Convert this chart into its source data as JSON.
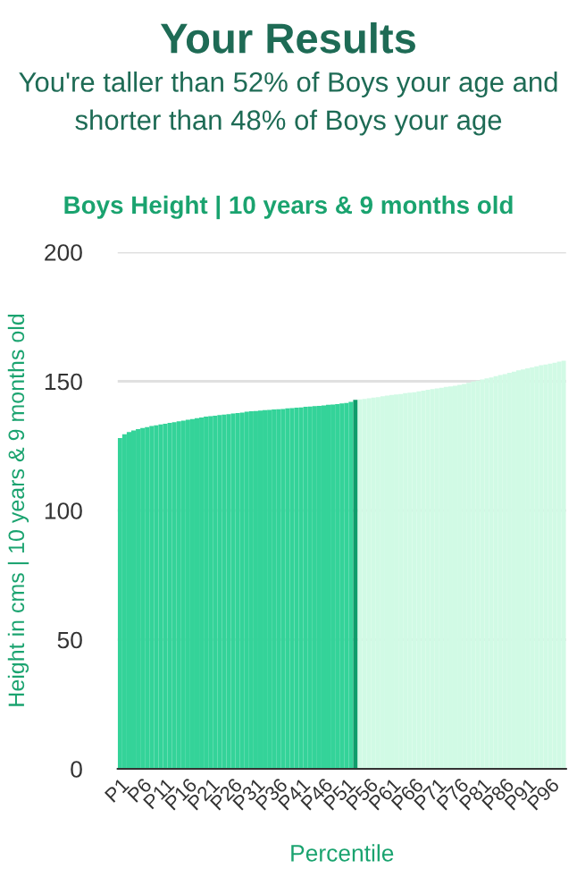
{
  "chart_data": {
    "type": "bar",
    "title": "Boys Height | 10 years & 9 months old",
    "subtitle": "You're taller than 52% of Boys your age and shorter than 48% of Boys your age",
    "annotations": [
      "Your Results"
    ],
    "xlabel": "Percentile",
    "ylabel": "Height in cms | 10 years & 9 months old",
    "categories": [
      "P1",
      null,
      null,
      null,
      null,
      "P6",
      null,
      null,
      null,
      null,
      "P11",
      null,
      null,
      null,
      null,
      "P16",
      null,
      null,
      null,
      null,
      "P21",
      null,
      null,
      null,
      null,
      "P26",
      null,
      null,
      null,
      null,
      "P31",
      null,
      null,
      null,
      null,
      "P36",
      null,
      null,
      null,
      null,
      "P41",
      null,
      null,
      null,
      null,
      "P46",
      null,
      null,
      null,
      null,
      "P51",
      null,
      null,
      null,
      null,
      "P56",
      null,
      null,
      null,
      null,
      "P61",
      null,
      null,
      null,
      null,
      "P66",
      null,
      null,
      null,
      null,
      "P71",
      null,
      null,
      null,
      null,
      "P76",
      null,
      null,
      null,
      null,
      "P81",
      null,
      null,
      null,
      null,
      "P86",
      null,
      null,
      null,
      null,
      "P91",
      null,
      null,
      null,
      null,
      "P96",
      null,
      null,
      null
    ],
    "values": [
      128.0,
      129.5,
      130.4,
      131.0,
      131.5,
      131.9,
      132.3,
      132.7,
      133.0,
      133.3,
      133.6,
      133.9,
      134.2,
      134.5,
      134.8,
      135.1,
      135.4,
      135.7,
      136.0,
      136.3,
      136.5,
      136.7,
      136.9,
      137.1,
      137.3,
      137.5,
      137.7,
      137.9,
      138.2,
      138.4,
      138.5,
      138.7,
      138.8,
      138.9,
      139.1,
      139.2,
      139.3,
      139.5,
      139.6,
      139.8,
      139.9,
      140.1,
      140.2,
      140.4,
      140.5,
      140.7,
      140.9,
      141.0,
      141.2,
      141.4,
      141.6,
      142.0,
      142.8,
      143.0,
      143.2,
      143.4,
      143.7,
      143.9,
      144.2,
      144.5,
      144.7,
      144.9,
      145.1,
      145.4,
      145.6,
      145.8,
      146.1,
      146.4,
      146.7,
      147.0,
      147.2,
      147.5,
      147.8,
      148.0,
      148.3,
      148.6,
      149.0,
      149.4,
      149.9,
      150.3,
      150.7,
      151.1,
      151.5,
      152.0,
      152.4,
      152.8,
      153.3,
      153.7,
      154.2,
      154.6,
      155.0,
      155.4,
      155.8,
      156.2,
      156.5,
      156.8,
      157.2,
      157.6,
      158.0
    ],
    "colors": [
      "#34d399",
      "#34d399",
      "#34d399",
      "#34d399",
      "#34d399",
      "#34d399",
      "#34d399",
      "#34d399",
      "#34d399",
      "#34d399",
      "#34d399",
      "#34d399",
      "#34d399",
      "#34d399",
      "#34d399",
      "#34d399",
      "#34d399",
      "#34d399",
      "#34d399",
      "#34d399",
      "#34d399",
      "#34d399",
      "#34d399",
      "#34d399",
      "#34d399",
      "#34d399",
      "#34d399",
      "#34d399",
      "#34d399",
      "#34d399",
      "#34d399",
      "#34d399",
      "#34d399",
      "#34d399",
      "#34d399",
      "#34d399",
      "#34d399",
      "#34d399",
      "#34d399",
      "#34d399",
      "#34d399",
      "#34d399",
      "#34d399",
      "#34d399",
      "#34d399",
      "#34d399",
      "#34d399",
      "#34d399",
      "#34d399",
      "#34d399",
      "#34d399",
      "#34d399",
      "#0f9d6b",
      "#d1fae5",
      "#d1fae5",
      "#d1fae5",
      "#d1fae5",
      "#d1fae5",
      "#d1fae5",
      "#d1fae5",
      "#d1fae5",
      "#d1fae5",
      "#d1fae5",
      "#d1fae5",
      "#d1fae5",
      "#d1fae5",
      "#d1fae5",
      "#d1fae5",
      "#d1fae5",
      "#d1fae5",
      "#d1fae5",
      "#d1fae5",
      "#d1fae5",
      "#d1fae5",
      "#d1fae5",
      "#d1fae5",
      "#d1fae5",
      "#d1fae5",
      "#d1fae5",
      "#d1fae5",
      "#d1fae5",
      "#d1fae5",
      "#d1fae5",
      "#d1fae5",
      "#d1fae5",
      "#d1fae5",
      "#d1fae5",
      "#d1fae5",
      "#d1fae5",
      "#d1fae5",
      "#d1fae5",
      "#d1fae5",
      "#d1fae5",
      "#d1fae5",
      "#d1fae5",
      "#d1fae5",
      "#d1fae5",
      "#d1fae5",
      "#d1fae5"
    ],
    "ylim": [
      0,
      200
    ],
    "yticks": [
      0,
      50,
      100,
      150,
      200
    ],
    "grid": "y",
    "legend": false
  }
}
